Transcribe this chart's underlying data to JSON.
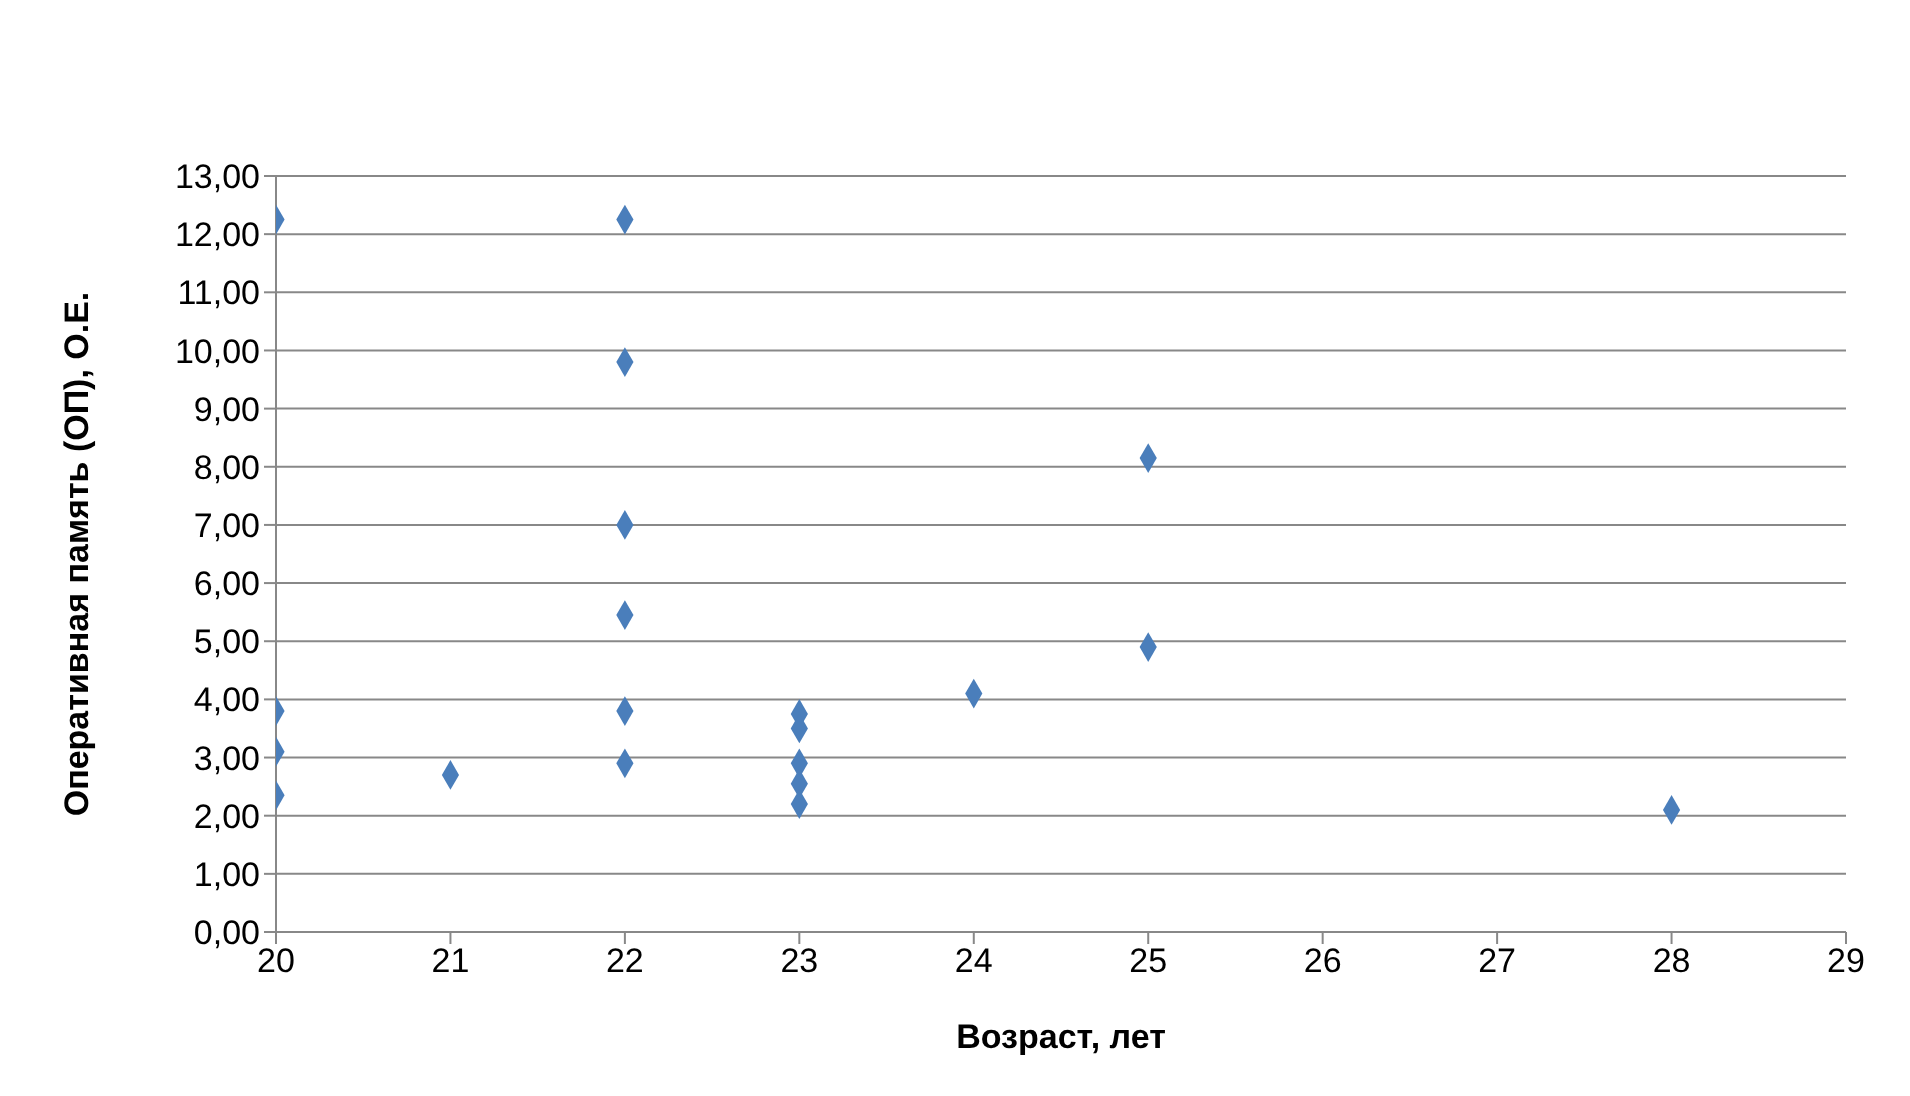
{
  "chart_data": {
    "type": "scatter",
    "xlabel": "Возраст, лет",
    "ylabel": "Оперативная память (ОП), О.Е.",
    "x": [
      20,
      20,
      20,
      20,
      21,
      22,
      22,
      22,
      22,
      22,
      22,
      23,
      23,
      23,
      23,
      23,
      24,
      25,
      25,
      28
    ],
    "values": [
      12.25,
      3.8,
      3.1,
      2.35,
      2.7,
      12.25,
      9.8,
      7.0,
      5.45,
      3.8,
      2.9,
      3.75,
      3.5,
      2.9,
      2.55,
      2.2,
      4.1,
      8.15,
      4.9,
      2.1
    ],
    "color": "#4a7ebb",
    "marker": "diamond",
    "grid": "y",
    "xlim": [
      20,
      29
    ],
    "xticks": [
      20,
      21,
      22,
      23,
      24,
      25,
      26,
      27,
      28,
      29
    ],
    "ylim": [
      0,
      13
    ],
    "yticks": [
      {
        "value": 0,
        "label": "0,00"
      },
      {
        "value": 1,
        "label": "1,00"
      },
      {
        "value": 2,
        "label": "2,00"
      },
      {
        "value": 3,
        "label": "3,00"
      },
      {
        "value": 4,
        "label": "4,00"
      },
      {
        "value": 5,
        "label": "5,00"
      },
      {
        "value": 6,
        "label": "6,00"
      },
      {
        "value": 7,
        "label": "7,00"
      },
      {
        "value": 8,
        "label": "8,00"
      },
      {
        "value": 9,
        "label": "9,00"
      },
      {
        "value": 10,
        "label": "10,00"
      },
      {
        "value": 11,
        "label": "11,00"
      },
      {
        "value": 12,
        "label": "12,00"
      },
      {
        "value": 13,
        "label": "13,00"
      }
    ]
  }
}
